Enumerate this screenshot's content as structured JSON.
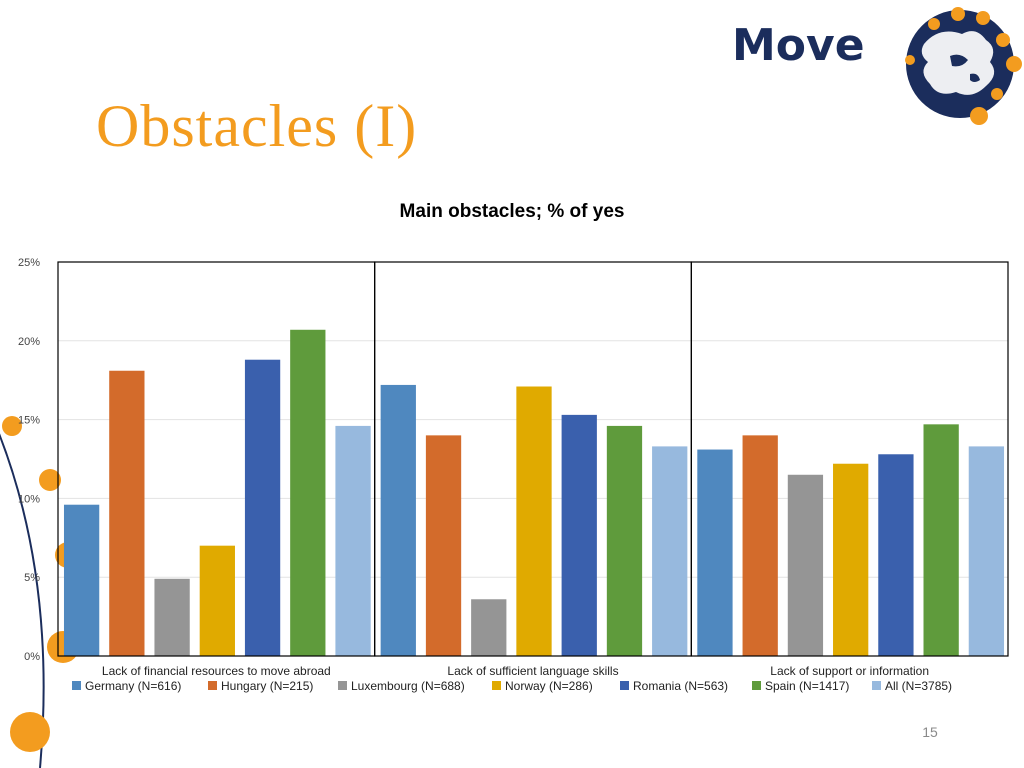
{
  "slide": {
    "title": "Obstacles (I)",
    "page_number": "15",
    "logo_text": "Move"
  },
  "colors": {
    "title_accent": "#f39c1f",
    "logo_navy": "#1b2d5c",
    "series": [
      "#4f88bf",
      "#d36b2b",
      "#959595",
      "#e0aa00",
      "#3a60ad",
      "#5f9b3c",
      "#97b9de"
    ]
  },
  "chart_data": {
    "type": "bar",
    "title": "Main obstacles; % of yes",
    "xlabel": "",
    "ylabel": "",
    "ylim": [
      0,
      25
    ],
    "yticks": [
      0,
      5,
      10,
      15,
      20,
      25
    ],
    "ytick_labels": [
      "0%",
      "5%",
      "10%",
      "15%",
      "20%",
      "25%"
    ],
    "grid": true,
    "legend": "bottom",
    "categories": [
      "Lack of financial resources to move abroad",
      "Lack of sufficient language skills",
      "Lack of support or information"
    ],
    "series": [
      {
        "name": "Germany (N=616)",
        "values": [
          9.6,
          17.2,
          13.1
        ]
      },
      {
        "name": "Hungary (N=215)",
        "values": [
          18.1,
          14.0,
          14.0
        ]
      },
      {
        "name": "Luxembourg (N=688)",
        "values": [
          4.9,
          3.6,
          11.5
        ]
      },
      {
        "name": "Norway (N=286)",
        "values": [
          7.0,
          17.1,
          12.2
        ]
      },
      {
        "name": "Romania (N=563)",
        "values": [
          18.8,
          15.3,
          12.8
        ]
      },
      {
        "name": "Spain (N=1417)",
        "values": [
          20.7,
          14.6,
          14.7
        ]
      },
      {
        "name": "All (N=3785)",
        "values": [
          14.6,
          13.3,
          13.3
        ]
      }
    ]
  }
}
